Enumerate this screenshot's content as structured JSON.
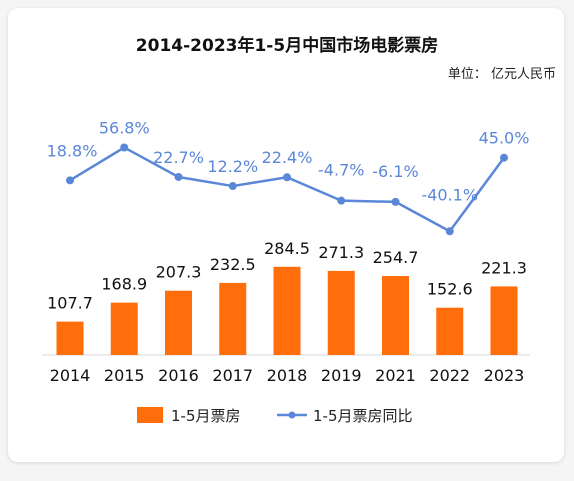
{
  "chart_data": {
    "type": "bar",
    "title": "2014-2023年1-5月中国市场电影票房",
    "unit_label": "单位： 亿元人民币",
    "categories": [
      "2014",
      "2015",
      "2016",
      "2017",
      "2018",
      "2019",
      "2021",
      "2022",
      "2023"
    ],
    "series": [
      {
        "name": "1-5月票房",
        "type": "bar",
        "values": [
          107.7,
          168.9,
          207.3,
          232.5,
          284.5,
          271.3,
          254.7,
          152.6,
          221.3
        ],
        "labels": [
          "107.7",
          "168.9",
          "207.3",
          "232.5",
          "284.5",
          "271.3",
          "254.7",
          "152.6",
          "221.3"
        ],
        "color": "#ff6e0a"
      },
      {
        "name": "1-5月票房同比",
        "type": "line",
        "values": [
          18.8,
          56.8,
          22.7,
          12.2,
          22.4,
          -4.7,
          -6.1,
          -40.1,
          45.0
        ],
        "labels": [
          "18.8%",
          "56.8%",
          "22.7%",
          "12.2%",
          "22.4%",
          "-4.7%",
          "-6.1%",
          "-40.1%",
          "45.0%"
        ],
        "color": "#5a87d8"
      }
    ],
    "legend_position": "bottom",
    "grid": false
  }
}
